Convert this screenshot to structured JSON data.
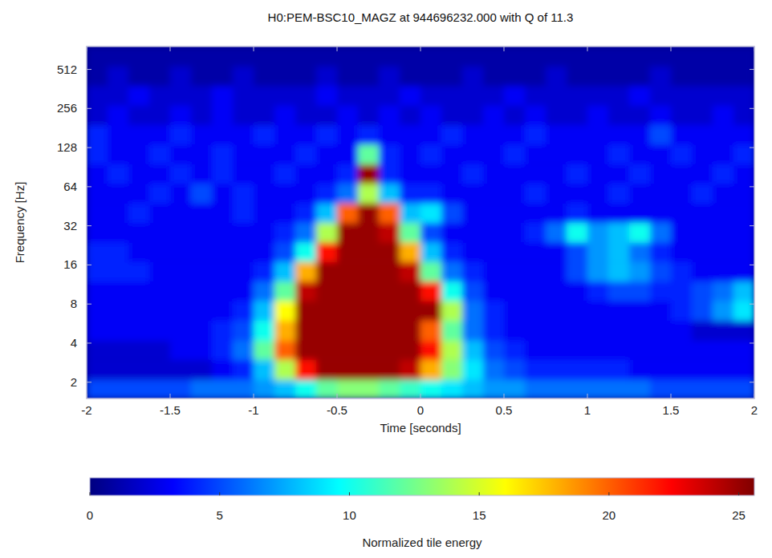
{
  "chart_data": {
    "type": "heatmap",
    "title": "H0:PEM-BSC10_MAGZ at 944696232.000 with Q of 11.3",
    "x_label": "Time [seconds]",
    "y_label": "Frequency [Hz]",
    "xlim": [
      -2,
      2
    ],
    "xticks": [
      -2,
      -1.5,
      -1,
      -0.5,
      0,
      0.5,
      1,
      1.5,
      2
    ],
    "ylim": [
      1.5,
      768
    ],
    "yticks": [
      2,
      4,
      8,
      16,
      32,
      64,
      128,
      256,
      512
    ],
    "log": "y",
    "x_edges": [
      -2,
      -1.875,
      -1.75,
      -1.625,
      -1.5,
      -1.375,
      -1.25,
      -1.125,
      -1,
      -0.875,
      -0.75,
      -0.625,
      -0.5,
      -0.375,
      -0.25,
      -0.125,
      0,
      0.125,
      0.25,
      0.375,
      0.5,
      0.625,
      0.75,
      0.875,
      1,
      1.125,
      1.25,
      1.375,
      1.5,
      1.625,
      1.75,
      1.875,
      2
    ],
    "y_edges": [
      1.5,
      2.1,
      3,
      4.2,
      6,
      8.5,
      12,
      17,
      24,
      34,
      48,
      68,
      96,
      136,
      192,
      272,
      384,
      543,
      768
    ],
    "cells": [
      [
        5,
        5,
        5,
        5,
        5,
        6,
        6,
        6,
        7,
        8,
        10,
        12,
        13,
        13,
        12,
        11,
        10,
        9,
        8,
        7,
        7,
        6,
        6,
        6,
        6,
        6,
        6,
        5,
        5,
        5,
        5,
        5
      ],
      [
        2,
        2,
        2,
        2,
        2,
        2,
        3,
        4,
        8,
        14,
        22,
        25,
        25,
        25,
        25,
        24,
        18,
        13,
        9,
        6,
        5,
        4,
        4,
        4,
        4,
        4,
        3,
        3,
        3,
        3,
        3,
        3
      ],
      [
        2,
        2,
        2,
        2,
        3,
        3,
        4,
        6,
        12,
        20,
        25,
        25,
        25,
        25,
        25,
        25,
        22,
        14,
        8,
        5,
        4,
        3,
        3,
        3,
        3,
        3,
        3,
        3,
        3,
        3,
        3,
        3
      ],
      [
        3,
        3,
        3,
        3,
        3,
        3,
        4,
        5,
        10,
        18,
        25,
        25,
        25,
        25,
        25,
        25,
        20,
        12,
        6,
        4,
        3,
        3,
        3,
        3,
        3,
        3,
        3,
        3,
        3,
        2,
        2,
        2
      ],
      [
        3,
        3,
        3,
        3,
        3,
        3,
        3,
        4,
        8,
        16,
        25,
        25,
        25,
        25,
        25,
        25,
        25,
        14,
        6,
        4,
        3,
        3,
        3,
        3,
        3,
        3,
        3,
        3,
        4,
        5,
        7,
        9
      ],
      [
        3,
        3,
        3,
        3,
        3,
        3,
        3,
        3,
        6,
        12,
        24,
        25,
        25,
        25,
        25,
        25,
        22,
        10,
        5,
        3,
        3,
        3,
        3,
        3,
        4,
        5,
        5,
        4,
        4,
        5,
        6,
        8
      ],
      [
        4,
        4,
        4,
        3,
        3,
        3,
        3,
        3,
        4,
        8,
        18,
        25,
        25,
        25,
        25,
        24,
        12,
        6,
        4,
        3,
        3,
        3,
        3,
        5,
        7,
        8,
        7,
        5,
        4,
        3,
        3,
        3
      ],
      [
        4,
        4,
        3,
        3,
        3,
        3,
        3,
        3,
        3,
        5,
        10,
        22,
        25,
        25,
        25,
        18,
        8,
        4,
        3,
        3,
        3,
        3,
        3,
        5,
        7,
        8,
        6,
        4,
        3,
        3,
        3,
        3
      ],
      [
        3,
        3,
        3,
        3,
        3,
        3,
        3,
        3,
        3,
        4,
        6,
        14,
        25,
        25,
        24,
        12,
        5,
        3,
        3,
        3,
        3,
        4,
        6,
        10,
        7,
        8,
        10,
        6,
        3,
        3,
        3,
        3
      ],
      [
        3,
        3,
        4,
        3,
        3,
        3,
        3,
        4,
        3,
        3,
        4,
        8,
        20,
        25,
        20,
        8,
        9,
        5,
        3,
        3,
        3,
        3,
        3,
        4,
        3,
        3,
        3,
        3,
        3,
        3,
        3,
        3
      ],
      [
        3,
        3,
        3,
        4,
        3,
        5,
        3,
        4,
        3,
        3,
        3,
        4,
        6,
        14,
        8,
        4,
        4,
        3,
        3,
        3,
        3,
        4,
        3,
        3,
        3,
        4,
        3,
        3,
        3,
        4,
        3,
        3
      ],
      [
        3,
        4,
        3,
        3,
        4,
        3,
        4,
        3,
        3,
        4,
        3,
        3,
        4,
        25,
        4,
        3,
        3,
        3,
        4,
        3,
        3,
        3,
        3,
        4,
        3,
        3,
        4,
        3,
        3,
        3,
        4,
        3
      ],
      [
        4,
        3,
        3,
        4,
        3,
        3,
        4,
        3,
        3,
        3,
        4,
        3,
        3,
        12,
        4,
        3,
        4,
        3,
        3,
        3,
        4,
        3,
        3,
        3,
        3,
        4,
        3,
        3,
        4,
        3,
        3,
        4
      ],
      [
        4,
        3,
        3,
        3,
        4,
        3,
        3,
        3,
        4,
        3,
        3,
        4,
        3,
        4,
        3,
        3,
        3,
        4,
        3,
        3,
        3,
        4,
        3,
        3,
        3,
        3,
        3,
        5,
        3,
        3,
        3,
        3
      ],
      [
        2,
        3,
        2,
        2,
        3,
        2,
        3,
        2,
        2,
        3,
        2,
        2,
        3,
        2,
        3,
        2,
        3,
        2,
        2,
        3,
        2,
        3,
        2,
        2,
        3,
        2,
        2,
        3,
        2,
        2,
        3,
        2
      ],
      [
        2,
        2,
        3,
        2,
        2,
        2,
        3,
        2,
        2,
        2,
        2,
        3,
        2,
        2,
        2,
        3,
        2,
        2,
        2,
        2,
        3,
        2,
        2,
        2,
        2,
        2,
        3,
        2,
        2,
        2,
        2,
        2
      ],
      [
        1,
        2,
        1,
        1,
        2,
        1,
        1,
        2,
        1,
        1,
        1,
        2,
        1,
        1,
        2,
        1,
        1,
        1,
        2,
        1,
        1,
        1,
        2,
        1,
        1,
        1,
        1,
        2,
        1,
        1,
        1,
        1
      ],
      [
        1,
        1,
        1,
        1,
        1,
        1,
        1,
        1,
        1,
        1,
        1,
        1,
        1,
        1,
        1,
        1,
        1,
        1,
        1,
        1,
        1,
        1,
        1,
        1,
        1,
        1,
        1,
        1,
        1,
        1,
        1,
        1
      ]
    ],
    "color_label": "Normalized tile energy",
    "color_range": [
      0,
      25.6
    ],
    "color_ticks": [
      0,
      5,
      10,
      15,
      20,
      25
    ]
  }
}
